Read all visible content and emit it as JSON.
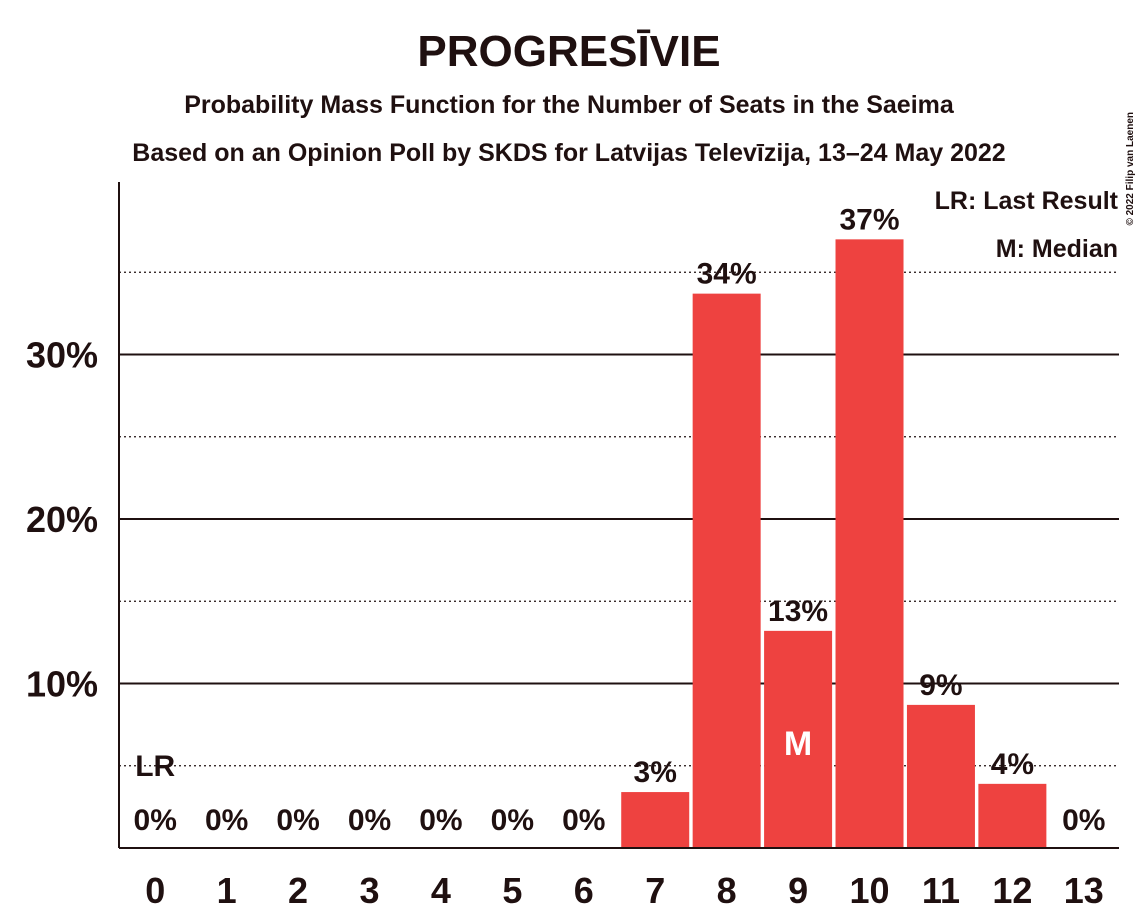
{
  "chart_data": {
    "type": "bar",
    "title": "PROGRESĪVIE",
    "subtitle_1": "Probability Mass Function for the Number of Seats in the Saeima",
    "subtitle_2": "Based on an Opinion Poll by SKDS for Latvijas Televīzija, 13–24 May 2022",
    "copyright": "© 2022 Filip van Laenen",
    "categories": [
      "0",
      "1",
      "2",
      "3",
      "4",
      "5",
      "6",
      "7",
      "8",
      "9",
      "10",
      "11",
      "12",
      "13"
    ],
    "values": [
      0,
      0,
      0,
      0,
      0,
      0,
      0,
      3.4,
      33.7,
      13.2,
      37.0,
      8.7,
      3.9,
      0
    ],
    "value_labels": [
      "0%",
      "0%",
      "0%",
      "0%",
      "0%",
      "0%",
      "0%",
      "3%",
      "34%",
      "13%",
      "37%",
      "9%",
      "4%",
      "0%"
    ],
    "y_ticks": [
      10,
      20,
      30
    ],
    "y_tick_labels": [
      "10%",
      "20%",
      "30%"
    ],
    "ylim": [
      0,
      40
    ],
    "bar_color": "#ee4240",
    "last_result_index": 0,
    "last_result_marker": "LR",
    "median_index": 9,
    "median_marker": "M",
    "legend": {
      "last_result": "LR: Last Result",
      "median": "M: Median"
    },
    "legend_position": "top-right",
    "grid": "solid lines at labeled ticks, dotted lines at midpoints"
  }
}
